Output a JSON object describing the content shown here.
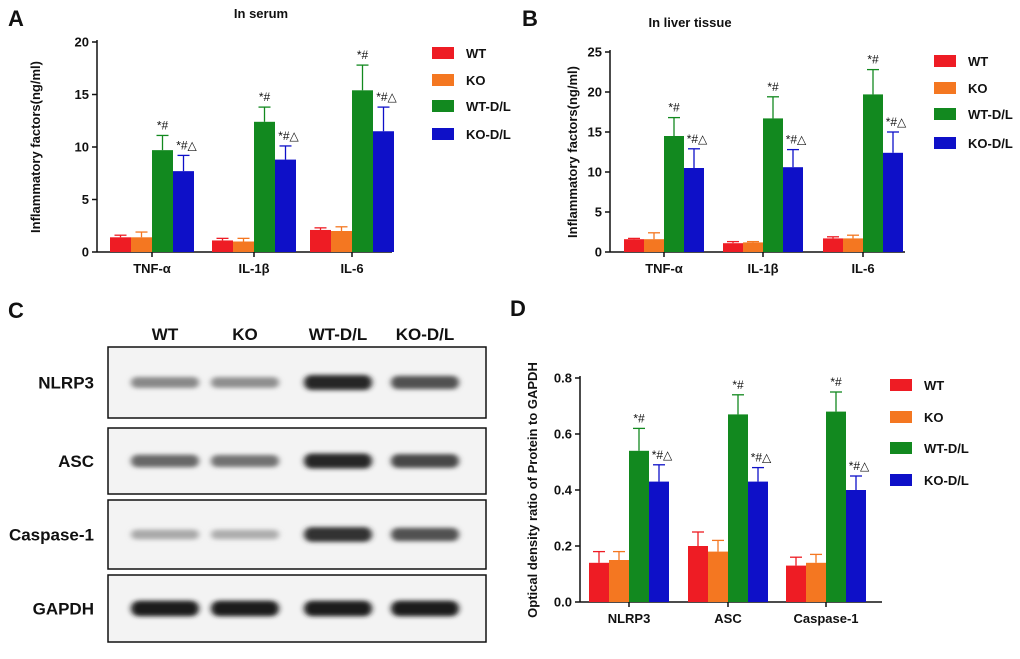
{
  "panels": {
    "A": "A",
    "B": "B",
    "C": "C",
    "D": "D"
  },
  "colors": {
    "WT": "#ee1c24",
    "KO": "#f47721",
    "WT-D/L": "#12891f",
    "KO-D/L": "#0e10c8"
  },
  "chart_data": [
    {
      "id": "A",
      "type": "bar",
      "title": "In serum",
      "xlabel": "",
      "ylabel": "Inflammatory factors(ng/ml)",
      "ylim": [
        0,
        20
      ],
      "yticks": [
        0,
        5,
        10,
        15,
        20
      ],
      "ytick_labels": [
        "0",
        "5",
        "10",
        "15",
        "20"
      ],
      "categories": [
        "TNF-α",
        "IL-1β",
        "IL-6"
      ],
      "legend_position": "top-right",
      "series": [
        {
          "name": "WT",
          "values": [
            1.4,
            1.1,
            2.1
          ],
          "errors": [
            0.2,
            0.2,
            0.2
          ],
          "annotations": [
            "",
            "",
            ""
          ]
        },
        {
          "name": "KO",
          "values": [
            1.4,
            1.0,
            2.0
          ],
          "errors": [
            0.5,
            0.3,
            0.4
          ],
          "annotations": [
            "",
            "",
            ""
          ]
        },
        {
          "name": "WT-D/L",
          "values": [
            9.7,
            12.4,
            15.4
          ],
          "errors": [
            1.4,
            1.4,
            2.4
          ],
          "annotations": [
            "*#",
            "*#",
            "*#"
          ]
        },
        {
          "name": "KO-D/L",
          "values": [
            7.7,
            8.8,
            11.5
          ],
          "errors": [
            1.5,
            1.3,
            2.3
          ],
          "annotations": [
            "*#△",
            "*#△",
            "*#△"
          ]
        }
      ]
    },
    {
      "id": "B",
      "type": "bar",
      "title": "In liver tissue",
      "xlabel": "",
      "ylabel": "Inflammatory factors(ng/ml)",
      "ylim": [
        0,
        25
      ],
      "yticks": [
        0,
        5,
        10,
        15,
        20,
        25
      ],
      "ytick_labels": [
        "0",
        "5",
        "10",
        "15",
        "20",
        "25"
      ],
      "categories": [
        "TNF-α",
        "IL-1β",
        "IL-6"
      ],
      "legend_position": "top-right",
      "series": [
        {
          "name": "WT",
          "values": [
            1.6,
            1.1,
            1.7
          ],
          "errors": [
            0.1,
            0.2,
            0.2
          ],
          "annotations": [
            "",
            "",
            ""
          ]
        },
        {
          "name": "KO",
          "values": [
            1.6,
            1.2,
            1.7
          ],
          "errors": [
            0.8,
            0.1,
            0.4
          ],
          "annotations": [
            "",
            "",
            ""
          ]
        },
        {
          "name": "WT-D/L",
          "values": [
            14.5,
            16.7,
            19.7
          ],
          "errors": [
            2.3,
            2.7,
            3.1
          ],
          "annotations": [
            "*#",
            "*#",
            "*#"
          ]
        },
        {
          "name": "KO-D/L",
          "values": [
            10.5,
            10.6,
            12.4
          ],
          "errors": [
            2.4,
            2.2,
            2.6
          ],
          "annotations": [
            "*#△",
            "*#△",
            "*#△"
          ]
        }
      ]
    },
    {
      "id": "D",
      "type": "bar",
      "title": "",
      "xlabel": "",
      "ylabel": "Optical density ratio of Protein to GAPDH",
      "ylim": [
        0,
        0.8
      ],
      "yticks": [
        0,
        0.2,
        0.4,
        0.6,
        0.8
      ],
      "ytick_labels": [
        "0.0",
        "0.2",
        "0.4",
        "0.6",
        "0.8"
      ],
      "categories": [
        "NLRP3",
        "ASC",
        "Caspase-1"
      ],
      "legend_position": "right",
      "series": [
        {
          "name": "WT",
          "values": [
            0.14,
            0.2,
            0.13
          ],
          "errors": [
            0.04,
            0.05,
            0.03
          ],
          "annotations": [
            "",
            "",
            ""
          ]
        },
        {
          "name": "KO",
          "values": [
            0.15,
            0.18,
            0.14
          ],
          "errors": [
            0.03,
            0.04,
            0.03
          ],
          "annotations": [
            "",
            "",
            ""
          ]
        },
        {
          "name": "WT-D/L",
          "values": [
            0.54,
            0.67,
            0.68
          ],
          "errors": [
            0.08,
            0.07,
            0.07
          ],
          "annotations": [
            "*#",
            "*#",
            "*#"
          ]
        },
        {
          "name": "KO-D/L",
          "values": [
            0.43,
            0.43,
            0.4
          ],
          "errors": [
            0.06,
            0.05,
            0.05
          ],
          "annotations": [
            "*#△",
            "*#△",
            "*#△"
          ]
        }
      ]
    }
  ],
  "western_blot": {
    "lanes": [
      "WT",
      "KO",
      "WT-D/L",
      "KO-D/L"
    ],
    "rows": [
      {
        "label": "NLRP3",
        "intensity": [
          0.45,
          0.42,
          0.9,
          0.7
        ]
      },
      {
        "label": "ASC",
        "intensity": [
          0.6,
          0.55,
          0.9,
          0.75
        ]
      },
      {
        "label": "Caspase-1",
        "intensity": [
          0.3,
          0.28,
          0.85,
          0.7
        ]
      },
      {
        "label": "GAPDH",
        "intensity": [
          0.95,
          0.95,
          0.95,
          0.95
        ]
      }
    ]
  }
}
